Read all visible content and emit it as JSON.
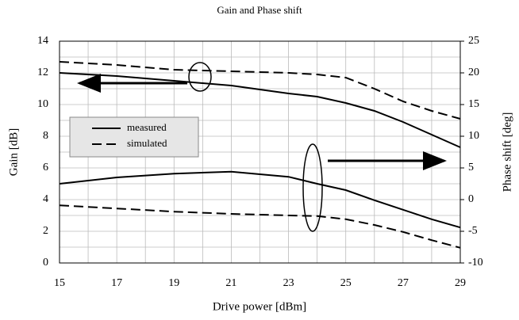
{
  "chart_data": {
    "type": "line",
    "title": "Gain and Phase shift",
    "x_label": "Drive power [dBm]",
    "y_label": "Gain [dB]",
    "y2_label": "Phase shift [deg]",
    "x": [
      15,
      17,
      19,
      21,
      23,
      24,
      25,
      26,
      27,
      28,
      29
    ],
    "series": [
      {
        "color": "#000000",
        "dash": false,
        "axis": "y",
        "values": [
          12.0,
          11.8,
          11.5,
          11.2,
          10.7,
          10.5,
          10.1,
          9.6,
          8.9,
          8.1,
          7.3
        ]
      },
      {
        "color": "#000000",
        "dash": true,
        "axis": "y",
        "values": [
          12.7,
          12.5,
          12.2,
          12.1,
          12.0,
          11.9,
          11.7,
          11.0,
          10.2,
          9.6,
          9.1
        ]
      },
      {
        "color": "#000000",
        "dash": false,
        "axis": "y2",
        "values": [
          2.5,
          3.5,
          4.1,
          4.4,
          3.6,
          2.5,
          1.5,
          -0.1,
          -1.6,
          -3.1,
          -4.4
        ]
      },
      {
        "color": "#000000",
        "dash": true,
        "axis": "y2",
        "values": [
          -0.9,
          -1.4,
          -1.9,
          -2.25,
          -2.5,
          -2.6,
          -3.1,
          -4.0,
          -5.1,
          -6.4,
          -7.6
        ]
      }
    ],
    "legend": [
      {
        "name": "measured",
        "dash": false
      },
      {
        "name": "simulated",
        "dash": true
      }
    ],
    "xlim": [
      15,
      29
    ],
    "xticks": [
      15,
      17,
      19,
      21,
      23,
      25,
      27,
      29
    ],
    "minor_xticks": [
      16,
      18,
      20,
      22,
      24,
      26,
      28
    ],
    "ylim": [
      0,
      14
    ],
    "yticks": [
      0,
      2,
      4,
      6,
      8,
      10,
      12,
      14
    ],
    "minor_yticks": [
      1,
      3,
      5,
      7,
      9,
      11,
      13
    ],
    "y2lim": [
      -10,
      25
    ],
    "y2ticks": [
      -10,
      -5,
      0,
      5,
      10,
      15,
      20,
      25
    ],
    "grid": true
  }
}
